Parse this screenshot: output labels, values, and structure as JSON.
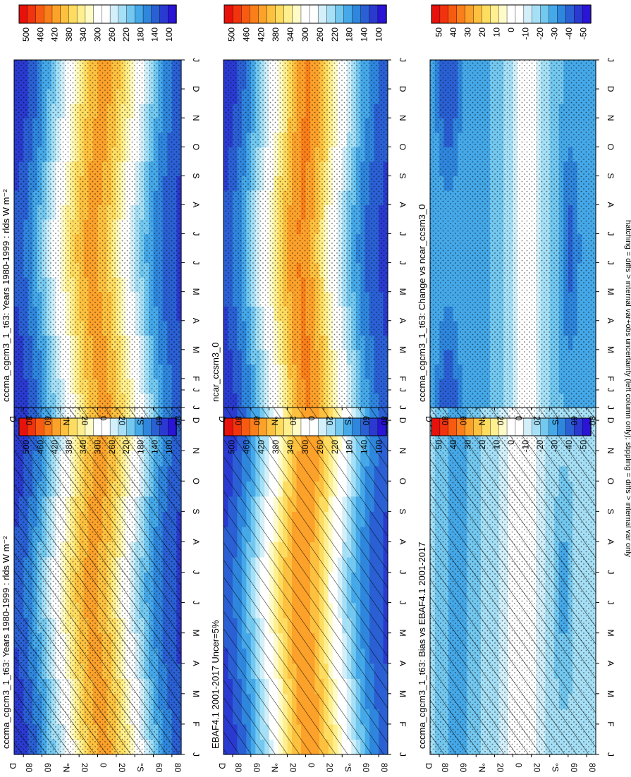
{
  "footer_note": "hatching = diffs > internal var+obs uncertainty (left column only); stippling = diffs > internal var only",
  "colors": {
    "abs_scale": [
      "#e8110b",
      "#f2340e",
      "#f75b12",
      "#fa7e1a",
      "#fca12a",
      "#fdc13f",
      "#fedc60",
      "#ffef8f",
      "#fffbc7",
      "#ffffff",
      "#ffffff",
      "#d3f0fa",
      "#a6e0f6",
      "#73c8f0",
      "#45a8e8",
      "#2f86dd",
      "#2a60d4",
      "#2a3ad0",
      "#2a14d6"
    ],
    "diff_scale": [
      "#e8110b",
      "#f2340e",
      "#f75b12",
      "#fa7e1a",
      "#fca12a",
      "#fdc13f",
      "#fedc60",
      "#ffef8f",
      "#fffbc7",
      "#ffffff",
      "#ffffff",
      "#d3f0fa",
      "#a6e0f6",
      "#73c8f0",
      "#45a8e8",
      "#2f86dd",
      "#2a60d4",
      "#2a3ad0",
      "#2a14d6"
    ]
  },
  "chart_data": [
    {
      "id": "panel-1",
      "type": "heatmap",
      "title": "cccma_cgcm3_1_t63: Years 1980-1999 : rlds W m⁻²",
      "xlabel": "month",
      "ylabel": "latitude",
      "x_ticks": [
        "J",
        "F",
        "M",
        "A",
        "M",
        "J",
        "J",
        "A",
        "S",
        "O",
        "N",
        "D",
        "J"
      ],
      "y_ticks_top_to_bottom": [
        "D",
        "80",
        "60",
        "°N",
        "20",
        "0",
        "20",
        "°S",
        "60",
        "80"
      ],
      "y_range": [
        -90,
        90
      ],
      "colorbar_ticks": [
        "500",
        "460",
        "420",
        "380",
        "340",
        "300",
        "260",
        "220",
        "180",
        "140",
        "100"
      ],
      "colorbar_range": [
        80,
        520
      ],
      "scale": "abs",
      "hatching": true,
      "stippling": true
    },
    {
      "id": "panel-2",
      "type": "heatmap",
      "title": "cccma_cgcm3_1_t63: Years 1980-1999 : rlds W m⁻²",
      "xlabel": "month",
      "ylabel": "latitude",
      "x_ticks": [
        "J",
        "F",
        "M",
        "A",
        "M",
        "J",
        "J",
        "A",
        "S",
        "O",
        "N",
        "D",
        "J"
      ],
      "y_ticks_top_to_bottom": [
        "D",
        "80",
        "60",
        "°N",
        "20",
        "0",
        "20",
        "°S",
        "60",
        "80"
      ],
      "y_range": [
        -90,
        90
      ],
      "colorbar_ticks": [
        "500",
        "460",
        "420",
        "380",
        "340",
        "300",
        "260",
        "220",
        "180",
        "140",
        "100"
      ],
      "colorbar_range": [
        80,
        520
      ],
      "scale": "abs",
      "hatching": false,
      "stippling": true
    },
    {
      "id": "panel-3",
      "type": "heatmap",
      "title": "EBAF4.1 2001-2017 Uncer=5%",
      "xlabel": "month",
      "ylabel": "latitude",
      "x_ticks": [
        "J",
        "F",
        "M",
        "A",
        "M",
        "J",
        "J",
        "A",
        "S",
        "O",
        "N",
        "D",
        "J"
      ],
      "y_ticks_top_to_bottom": [
        "D",
        "80",
        "60",
        "°N",
        "20",
        "0",
        "20",
        "°S",
        "60",
        "80"
      ],
      "y_range": [
        -90,
        90
      ],
      "colorbar_ticks": [
        "500",
        "460",
        "420",
        "380",
        "340",
        "300",
        "260",
        "220",
        "180",
        "140",
        "100"
      ],
      "colorbar_range": [
        80,
        520
      ],
      "scale": "abs",
      "hatching": true,
      "stippling": false
    },
    {
      "id": "panel-4",
      "type": "heatmap",
      "title": "ncar_ccsm3_0",
      "xlabel": "month",
      "ylabel": "latitude",
      "x_ticks": [
        "J",
        "F",
        "M",
        "A",
        "M",
        "J",
        "J",
        "A",
        "S",
        "O",
        "N",
        "D",
        "J"
      ],
      "y_ticks_top_to_bottom": [
        "D",
        "80",
        "60",
        "°N",
        "20",
        "0",
        "20",
        "°S",
        "60",
        "80"
      ],
      "y_range": [
        -90,
        90
      ],
      "colorbar_ticks": [
        "500",
        "460",
        "420",
        "380",
        "340",
        "300",
        "260",
        "220",
        "180",
        "140",
        "100"
      ],
      "colorbar_range": [
        80,
        520
      ],
      "scale": "abs",
      "hatching": false,
      "stippling": true
    },
    {
      "id": "panel-5",
      "type": "heatmap",
      "title": "cccma_cgcm3_1_t63: Bias vs EBAF4.1 2001-2017",
      "xlabel": "month",
      "ylabel": "latitude",
      "x_ticks": [
        "J",
        "F",
        "M",
        "A",
        "M",
        "J",
        "J",
        "A",
        "S",
        "O",
        "N",
        "D",
        "J"
      ],
      "y_ticks_top_to_bottom": [
        "D",
        "80",
        "60",
        "°N",
        "20",
        "0",
        "20",
        "°S",
        "60",
        "80"
      ],
      "y_range": [
        -90,
        90
      ],
      "colorbar_ticks": [
        "50",
        "40",
        "30",
        "20",
        "10",
        "0",
        "-10",
        "-20",
        "-30",
        "-40",
        "-50"
      ],
      "colorbar_range": [
        -55,
        55
      ],
      "scale": "diff",
      "hatching": true,
      "stippling": true
    },
    {
      "id": "panel-6",
      "type": "heatmap",
      "title": "cccma_cgcm3_1_t63: Change vs ncar_ccsm3_0",
      "xlabel": "month",
      "ylabel": "latitude",
      "x_ticks": [
        "J",
        "F",
        "M",
        "A",
        "M",
        "J",
        "J",
        "A",
        "S",
        "O",
        "N",
        "D",
        "J"
      ],
      "y_ticks_top_to_bottom": [
        "D",
        "80",
        "60",
        "°N",
        "20",
        "0",
        "20",
        "°S",
        "60",
        "80"
      ],
      "y_range": [
        -90,
        90
      ],
      "colorbar_ticks": [
        "50",
        "40",
        "30",
        "20",
        "10",
        "0",
        "-10",
        "-20",
        "-30",
        "-40",
        "-50"
      ],
      "colorbar_range": [
        -55,
        55
      ],
      "scale": "diff",
      "hatching": false,
      "stippling": true
    }
  ]
}
